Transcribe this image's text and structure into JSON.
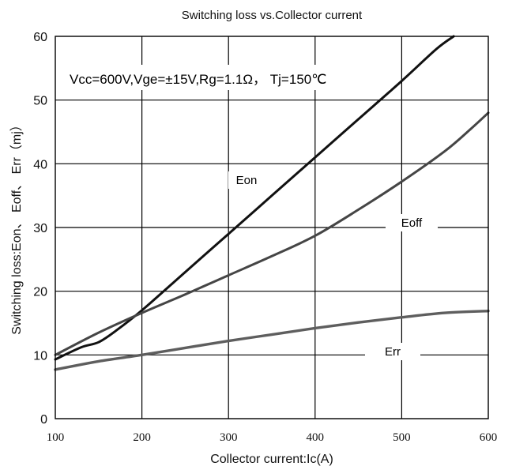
{
  "chart_data": {
    "type": "line",
    "title": "Switching loss vs.Collector current",
    "xlabel": "Collector current:Ic(A)",
    "ylabel": "Switching loss:Eon、 Eoff、 Err（mj）",
    "xlim": [
      100,
      600
    ],
    "ylim": [
      0,
      60
    ],
    "xticks": [
      100,
      200,
      300,
      400,
      500,
      600
    ],
    "yticks": [
      0,
      10,
      20,
      30,
      40,
      50,
      60
    ],
    "grid": true,
    "legend": "inline-labels",
    "annotation": "Vcc=600V,Vge=±15V,Rg=1.1Ω， Tj=150℃",
    "series": [
      {
        "name": "Eon",
        "color": "#111111",
        "x": [
          100,
          130,
          150,
          170,
          200,
          250,
          300,
          350,
          400,
          450,
          500,
          540,
          560
        ],
        "y": [
          9.3,
          11.2,
          12.0,
          13.8,
          17.0,
          23.0,
          29.0,
          35.0,
          41.0,
          47.0,
          53.0,
          58.0,
          60.0
        ]
      },
      {
        "name": "Eoff",
        "color": "#454545",
        "x": [
          100,
          150,
          200,
          250,
          300,
          350,
          400,
          450,
          500,
          550,
          580,
          600
        ],
        "y": [
          10.0,
          13.5,
          16.6,
          19.5,
          22.5,
          25.5,
          28.7,
          32.8,
          37.2,
          42.0,
          45.5,
          48.0
        ]
      },
      {
        "name": "Err",
        "color": "#5e5e5e",
        "x": [
          100,
          150,
          200,
          250,
          300,
          350,
          400,
          450,
          500,
          550,
          600
        ],
        "y": [
          7.7,
          9.0,
          10.0,
          11.1,
          12.2,
          13.2,
          14.2,
          15.1,
          15.9,
          16.6,
          16.9
        ]
      }
    ]
  }
}
